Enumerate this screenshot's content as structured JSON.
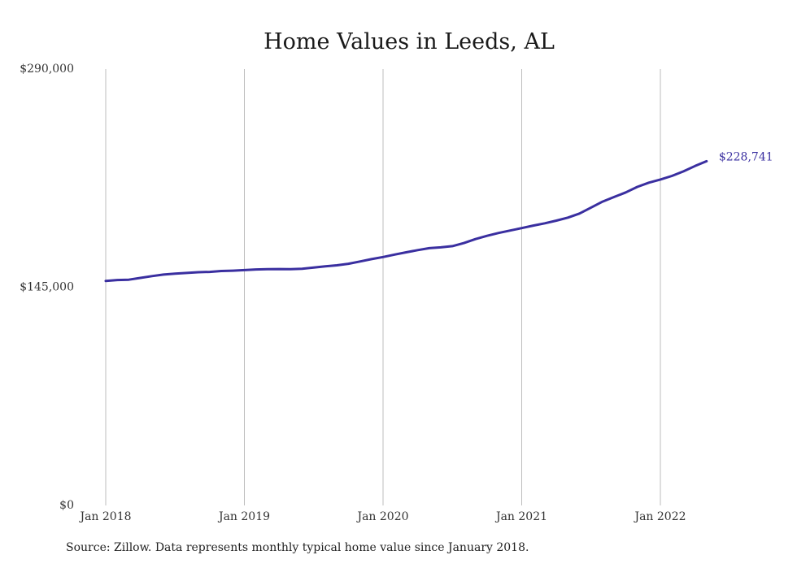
{
  "chart_data": {
    "type": "line",
    "title": "Home Values in Leeds, AL",
    "xlabel": "",
    "ylabel": "",
    "ylim": [
      0,
      290000
    ],
    "y_ticks": [
      {
        "value": 0,
        "label": "$0"
      },
      {
        "value": 145000,
        "label": "$145,000"
      },
      {
        "value": 290000,
        "label": "$290,000"
      }
    ],
    "x_ticks": [
      {
        "value": "2018-01",
        "label": "Jan 2018"
      },
      {
        "value": "2019-01",
        "label": "Jan 2019"
      },
      {
        "value": "2020-01",
        "label": "Jan 2020"
      },
      {
        "value": "2021-01",
        "label": "Jan 2021"
      },
      {
        "value": "2022-01",
        "label": "Jan 2022"
      }
    ],
    "grid": "vertical",
    "series": [
      {
        "color": "#3a2fa0",
        "end_label": "$228,741",
        "x": [
          "2018-01",
          "2018-02",
          "2018-03",
          "2018-04",
          "2018-05",
          "2018-06",
          "2018-07",
          "2018-08",
          "2018-09",
          "2018-10",
          "2018-11",
          "2018-12",
          "2019-01",
          "2019-02",
          "2019-03",
          "2019-04",
          "2019-05",
          "2019-06",
          "2019-07",
          "2019-08",
          "2019-09",
          "2019-10",
          "2019-11",
          "2019-12",
          "2020-01",
          "2020-02",
          "2020-03",
          "2020-04",
          "2020-05",
          "2020-06",
          "2020-07",
          "2020-08",
          "2020-09",
          "2020-10",
          "2020-11",
          "2020-12",
          "2021-01",
          "2021-02",
          "2021-03",
          "2021-04",
          "2021-05",
          "2021-06",
          "2021-07",
          "2021-08",
          "2021-09",
          "2021-10",
          "2021-11",
          "2021-12",
          "2022-01",
          "2022-02",
          "2022-03",
          "2022-04",
          "2022-05"
        ],
        "values": [
          149200,
          149800,
          150000,
          151200,
          152400,
          153400,
          154000,
          154500,
          155000,
          155200,
          155800,
          156000,
          156400,
          156800,
          157000,
          157100,
          157000,
          157300,
          158100,
          158900,
          159600,
          160600,
          162100,
          163700,
          165100,
          166700,
          168200,
          169700,
          171000,
          171500,
          172300,
          174400,
          177000,
          179200,
          181100,
          182700,
          184300,
          186000,
          187500,
          189300,
          191300,
          194000,
          198000,
          201900,
          205000,
          208000,
          211700,
          214500,
          216600,
          219000,
          222000,
          225600,
          228741
        ]
      }
    ]
  },
  "source_note": "Source: Zillow. Data represents monthly typical home value since January 2018."
}
